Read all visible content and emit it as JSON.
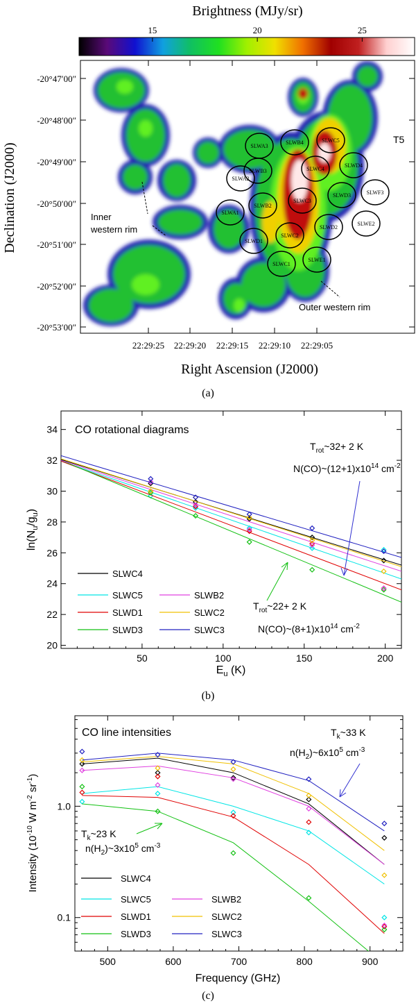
{
  "panels": {
    "a": {
      "label": "(a)",
      "colorbar": {
        "title": "Brightness (MJy/sr)",
        "ticks": [
          {
            "label": "15",
            "value": 15
          },
          {
            "label": "20",
            "value": 20
          },
          {
            "label": "25",
            "value": 25
          }
        ],
        "range": [
          11.5,
          27.5
        ],
        "stops": [
          "#000000",
          "#5a0a78",
          "#1010d0",
          "#10a0e0",
          "#10c060",
          "#20e020",
          "#a0f000",
          "#f0e000",
          "#f07000",
          "#a00000",
          "#c02020",
          "#ffd0d0",
          "#ffffff"
        ]
      },
      "xlabel": "Right Ascension (J2000)",
      "ylabel": "Declination (J2000)",
      "xticks": [
        "22:29:25",
        "22:29:20",
        "22:29:15",
        "22:29:10",
        "22:29:05"
      ],
      "yticks": [
        "-20°47′00″",
        "-20°48′00″",
        "-20°49′00″",
        "-20°50′00″",
        "-20°51′00″",
        "-20°52′00″",
        "-20°53′00″"
      ],
      "region_label": "T5",
      "annotations": {
        "inner_line1": "Inner",
        "inner_line2": "western rim",
        "outer": "Outer western rim"
      },
      "detectors": [
        "SLWA3",
        "SLWB4",
        "SLWC5",
        "SLWA2",
        "SLWB3",
        "SLWC4",
        "SLWD4",
        "SLWD3",
        "SLWF3",
        "SLWA1",
        "SLWB2",
        "SLWC3",
        "SLWD2",
        "SLWE2",
        "SLWD1",
        "SLWC2",
        "SLWC1",
        "SLWE1"
      ]
    },
    "b": {
      "label": "(b)",
      "title": "CO rotational diagrams",
      "xlabel": "E",
      "xlabel_sub": "u",
      "xlabel_unit": " (K)",
      "ylabel_main": "ln(N",
      "ylabel_sub": "u",
      "ylabel_rest": "/g",
      "ylabel_sub2": "u",
      "ylabel_end": ")",
      "upper_ann": {
        "t_main": "T",
        "t_sub": "rot",
        "t_rest": "~32+ 2 K",
        "n_text": "N(CO)~(12+1)x10",
        "n_sup": "14",
        "n_unit": " cm",
        "n_unit_sup": "-2"
      },
      "lower_ann": {
        "t_main": "T",
        "t_sub": "rot",
        "t_rest": "~22+ 2 K",
        "n_text": "N(CO)~(8+1)x10",
        "n_sup": "14",
        "n_unit": " cm",
        "n_unit_sup": "-2"
      }
    },
    "c": {
      "label": "(c)",
      "title": "CO line intensities",
      "xlabel": "Frequency (GHz)",
      "ylabel_main": "Intensity (10",
      "ylabel_sup": "-10",
      "ylabel_mid": " W m",
      "ylabel_sup2": "-2",
      "ylabel_mid2": " sr",
      "ylabel_sup3": "-1",
      "ylabel_end": ")",
      "upper_ann": {
        "t_main": "T",
        "t_sub": "k",
        "t_rest": "~33 K",
        "n_text": "n(H",
        "n_sub": "2",
        "n_rest": ")~6x10",
        "n_sup": "5",
        "n_unit": " cm",
        "n_unit_sup": "-3"
      },
      "lower_ann": {
        "t_main": "T",
        "t_sub": "k",
        "t_rest": "~23 K",
        "n_text": "n(H",
        "n_sub": "2",
        "n_rest": ")~3x10",
        "n_sup": "5",
        "n_unit": " cm",
        "n_unit_sup": "-3"
      }
    }
  },
  "chart_data": [
    {
      "type": "scatter",
      "title": "CO rotational diagrams",
      "xlabel": "Eu (K)",
      "ylabel": "ln(Nu/gu)",
      "xlim": [
        0,
        210
      ],
      "ylim": [
        19.8,
        35.2
      ],
      "xticks": [
        50,
        100,
        150,
        200
      ],
      "yticks": [
        20,
        22,
        24,
        26,
        28,
        30,
        32,
        34
      ],
      "legend": "bottom-left",
      "x": [
        55.3,
        83.0,
        116.2,
        154.9,
        199.1
      ],
      "series": [
        {
          "name": "SLWC4",
          "color": "#000000",
          "points": [
            30.5,
            29.3,
            28.2,
            27.0,
            25.5
          ],
          "fit": [
            32.05,
            25.2
          ]
        },
        {
          "name": "SLWC5",
          "color": "#00e5e5",
          "points": [
            29.7,
            28.9,
            27.6,
            26.3,
            26.2
          ],
          "fit": [
            31.95,
            24.3
          ]
        },
        {
          "name": "SLWD1",
          "color": "#e00000",
          "points": [
            30.0,
            29.0,
            27.4,
            26.6,
            23.7
          ],
          "fit": [
            31.95,
            23.6
          ]
        },
        {
          "name": "SLWD3",
          "color": "#10c010",
          "points": [
            29.9,
            28.4,
            26.7,
            24.9,
            23.6
          ],
          "fit": [
            32.0,
            22.8
          ]
        },
        {
          "name": "SLWB2",
          "color": "#e040e0",
          "points": [
            30.6,
            29.1,
            27.5,
            26.5,
            23.7
          ],
          "fit": [
            32.0,
            24.8
          ]
        },
        {
          "name": "SLWC2",
          "color": "#f0c000",
          "points": [
            30.0,
            29.6,
            28.3,
            26.8,
            24.8
          ],
          "fit": [
            32.1,
            25.1
          ]
        },
        {
          "name": "SLWC3",
          "color": "#2020c0",
          "points": [
            30.8,
            29.6,
            28.5,
            27.6,
            26.1
          ],
          "fit": [
            32.3,
            25.7
          ]
        }
      ]
    },
    {
      "type": "line",
      "title": "CO line intensities",
      "xlabel": "Frequency (GHz)",
      "ylabel": "Intensity (10^-10 W m^-2 sr^-1)",
      "xlim": [
        450,
        950
      ],
      "ylim": [
        0.05,
        6.5
      ],
      "yscale": "log",
      "xticks": [
        500,
        600,
        700,
        800,
        900
      ],
      "yticks": [
        0.1,
        1.0
      ],
      "ytick_labels": [
        "0.1",
        "1.0"
      ],
      "legend": "bottom-left",
      "x": [
        461,
        576.3,
        691.5,
        806.6,
        921.8
      ],
      "series": [
        {
          "name": "SLWC4",
          "color": "#000000",
          "points": [
            2.4,
            2.0,
            1.8,
            1.15,
            0.52
          ],
          "model": [
            2.4,
            2.7,
            2.0,
            1.05,
            0.3
          ]
        },
        {
          "name": "SLWC5",
          "color": "#00e5e5",
          "points": [
            1.1,
            1.3,
            0.88,
            0.58,
            0.1
          ],
          "model": [
            1.3,
            1.5,
            1.0,
            0.6,
            0.2
          ]
        },
        {
          "name": "SLWD1",
          "color": "#e00000",
          "points": [
            1.33,
            1.85,
            0.82,
            0.72,
            0.083
          ],
          "model": [
            1.25,
            1.2,
            0.8,
            0.3,
            0.072
          ]
        },
        {
          "name": "SLWD3",
          "color": "#10c010",
          "points": [
            1.5,
            0.9,
            0.38,
            0.15,
            0.078
          ],
          "model": [
            1.05,
            0.9,
            0.47,
            0.14,
            0.038
          ]
        },
        {
          "name": "SLWB2",
          "color": "#e040e0",
          "points": [
            2.1,
            1.55,
            1.75,
            0.95,
            0.085
          ],
          "model": [
            2.1,
            2.3,
            1.8,
            1.0,
            0.3
          ]
        },
        {
          "name": "SLWC2",
          "color": "#f0c000",
          "points": [
            2.6,
            2.2,
            2.15,
            1.25,
            0.24
          ],
          "model": [
            2.5,
            2.8,
            2.4,
            1.3,
            0.4
          ]
        },
        {
          "name": "SLWC3",
          "color": "#2020c0",
          "points": [
            3.1,
            2.9,
            2.5,
            1.75,
            0.7
          ],
          "model": [
            2.6,
            3.0,
            2.6,
            1.7,
            0.6
          ]
        }
      ]
    }
  ]
}
